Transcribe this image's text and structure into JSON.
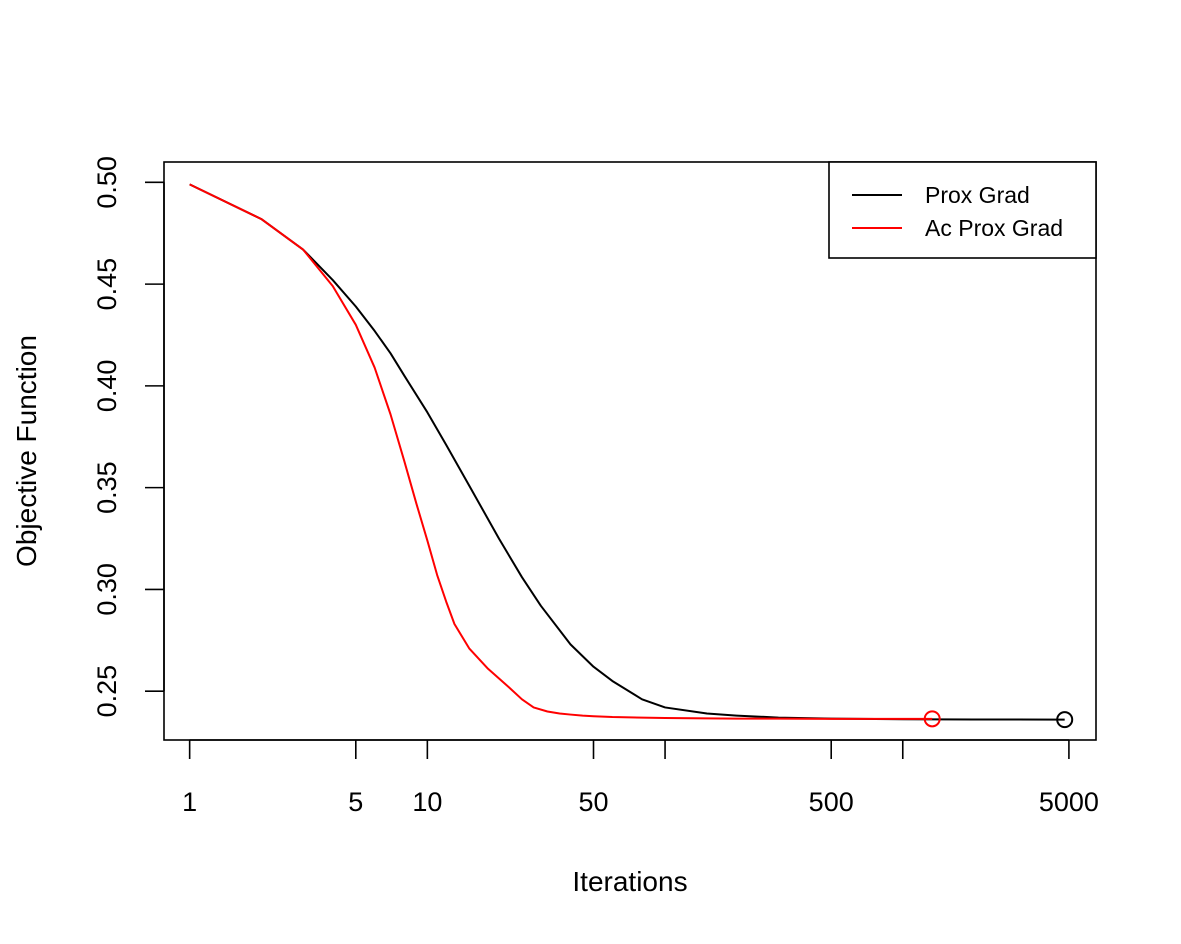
{
  "chart_data": {
    "type": "line",
    "title": "",
    "xlabel": "Iterations",
    "ylabel": "Objective Function",
    "x_scale": "log",
    "xlim": [
      0.78,
      6500
    ],
    "ylim": [
      0.226,
      0.51
    ],
    "x_ticks": [
      1,
      5,
      10,
      50,
      100,
      500,
      1000,
      5000
    ],
    "x_tick_labels": [
      "1",
      "5",
      "10",
      "50",
      "",
      "500",
      "",
      "5000"
    ],
    "y_ticks": [
      0.25,
      0.3,
      0.35,
      0.4,
      0.45,
      0.5
    ],
    "y_tick_labels": [
      "0.25",
      "0.30",
      "0.35",
      "0.40",
      "0.45",
      "0.50"
    ],
    "grid": false,
    "legend": {
      "position": "top-right",
      "entries": [
        {
          "label": "Prox Grad",
          "color": "#000000"
        },
        {
          "label": "Ac Prox Grad",
          "color": "#ff0000"
        }
      ]
    },
    "series": [
      {
        "name": "Prox Grad",
        "color": "#000000",
        "x": [
          1,
          2,
          3,
          4,
          5,
          6,
          7,
          8,
          10,
          12,
          15,
          20,
          25,
          30,
          40,
          50,
          60,
          80,
          100,
          150,
          200,
          300,
          500,
          1000,
          2000,
          4800
        ],
        "y": [
          0.499,
          0.482,
          0.467,
          0.452,
          0.439,
          0.427,
          0.416,
          0.405,
          0.387,
          0.371,
          0.351,
          0.325,
          0.306,
          0.292,
          0.273,
          0.262,
          0.255,
          0.246,
          0.242,
          0.239,
          0.238,
          0.237,
          0.2365,
          0.2362,
          0.2361,
          0.236
        ]
      },
      {
        "name": "Ac Prox Grad",
        "color": "#ff0000",
        "x": [
          1,
          2,
          3,
          4,
          5,
          6,
          7,
          8,
          9,
          10,
          11,
          12,
          13,
          15,
          18,
          22,
          25,
          28,
          32,
          36,
          40,
          45,
          50,
          60,
          80,
          100,
          150,
          200,
          300,
          500,
          1000,
          1330
        ],
        "y": [
          0.499,
          0.482,
          0.467,
          0.449,
          0.43,
          0.409,
          0.386,
          0.363,
          0.342,
          0.324,
          0.307,
          0.294,
          0.283,
          0.271,
          0.261,
          0.252,
          0.246,
          0.242,
          0.24,
          0.239,
          0.2385,
          0.238,
          0.2377,
          0.2373,
          0.237,
          0.2368,
          0.2366,
          0.2365,
          0.2365,
          0.2364,
          0.2364,
          0.2364
        ]
      }
    ],
    "end_markers": [
      {
        "series": "Prox Grad",
        "x": 4800,
        "y": 0.236,
        "shape": "open-circle",
        "color": "#000000"
      },
      {
        "series": "Ac Prox Grad",
        "x": 1330,
        "y": 0.2364,
        "shape": "open-circle",
        "color": "#ff0000"
      }
    ]
  }
}
